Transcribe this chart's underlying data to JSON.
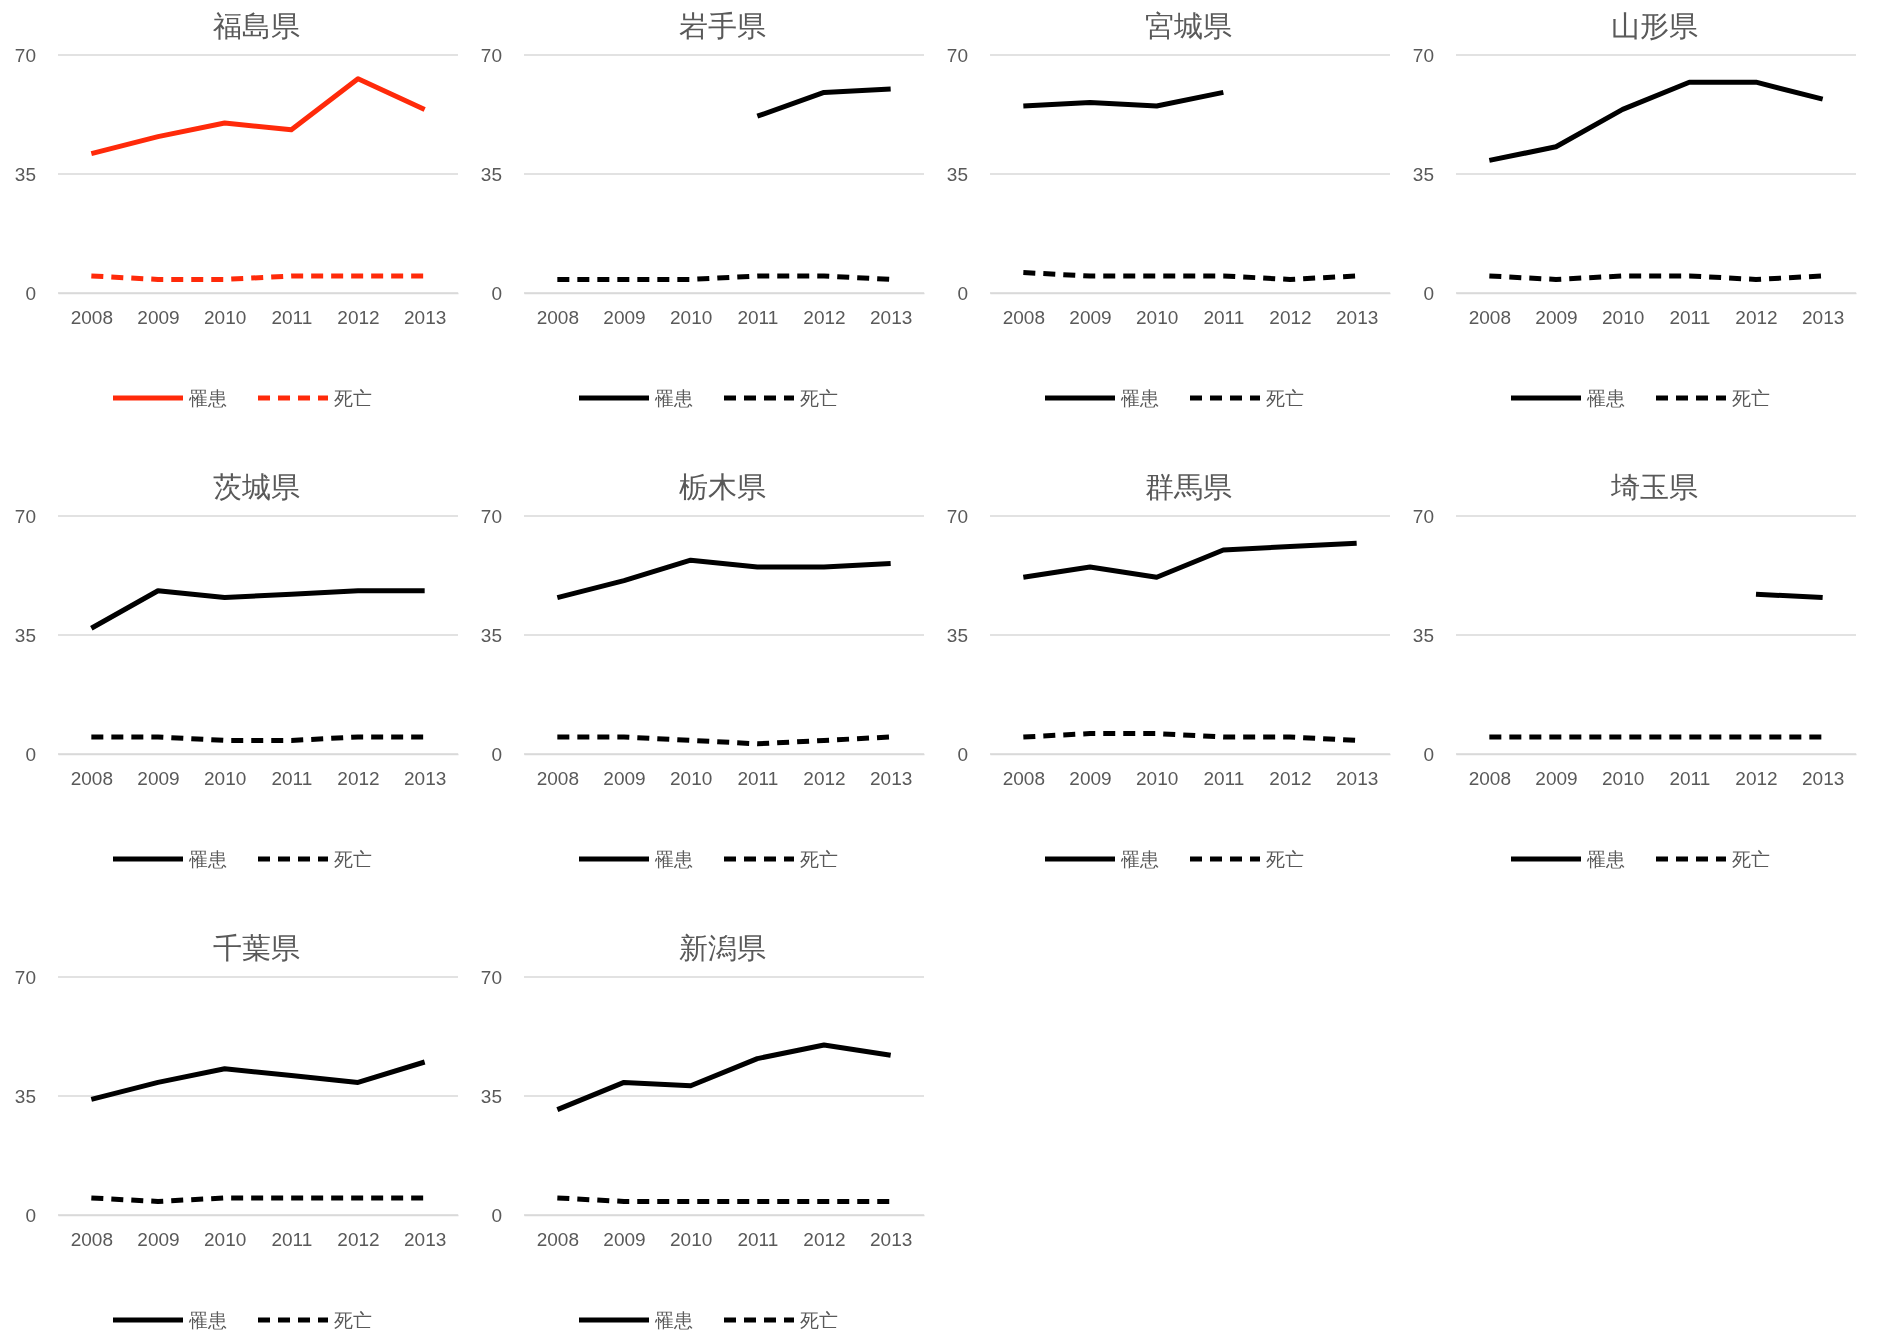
{
  "chart_data": [
    {
      "type": "line",
      "title": "福島県",
      "categories": [
        "2008",
        "2009",
        "2010",
        "2011",
        "2012",
        "2013"
      ],
      "ylim": [
        0,
        70
      ],
      "yticks": [
        0,
        35,
        70
      ],
      "grid": "y",
      "legend": "bottom",
      "series": [
        {
          "name": "罹患",
          "color": "#ff2a0a",
          "line_style": "solid",
          "values": [
            41,
            46,
            50,
            48,
            63,
            54
          ]
        },
        {
          "name": "死亡",
          "color": "#ff2a0a",
          "line_style": "dashed",
          "values": [
            5,
            4,
            4,
            5,
            5,
            5
          ]
        }
      ]
    },
    {
      "type": "line",
      "title": "岩手県",
      "categories": [
        "2008",
        "2009",
        "2010",
        "2011",
        "2012",
        "2013"
      ],
      "ylim": [
        0,
        70
      ],
      "yticks": [
        0,
        35,
        70
      ],
      "grid": "y",
      "legend": "bottom",
      "series": [
        {
          "name": "罹患",
          "color": "#000000",
          "line_style": "solid",
          "values": [
            null,
            null,
            null,
            52,
            59,
            60
          ]
        },
        {
          "name": "死亡",
          "color": "#000000",
          "line_style": "dashed",
          "values": [
            4,
            4,
            4,
            5,
            5,
            4
          ]
        }
      ]
    },
    {
      "type": "line",
      "title": "宮城県",
      "categories": [
        "2008",
        "2009",
        "2010",
        "2011",
        "2012",
        "2013"
      ],
      "ylim": [
        0,
        70
      ],
      "yticks": [
        0,
        35,
        70
      ],
      "grid": "y",
      "legend": "bottom",
      "series": [
        {
          "name": "罹患",
          "color": "#000000",
          "line_style": "solid",
          "values": [
            55,
            56,
            55,
            59,
            null,
            null
          ]
        },
        {
          "name": "死亡",
          "color": "#000000",
          "line_style": "dashed",
          "values": [
            6,
            5,
            5,
            5,
            4,
            5
          ]
        }
      ]
    },
    {
      "type": "line",
      "title": "山形県",
      "categories": [
        "2008",
        "2009",
        "2010",
        "2011",
        "2012",
        "2013"
      ],
      "ylim": [
        0,
        70
      ],
      "yticks": [
        0,
        35,
        70
      ],
      "grid": "y",
      "legend": "bottom",
      "series": [
        {
          "name": "罹患",
          "color": "#000000",
          "line_style": "solid",
          "values": [
            39,
            43,
            54,
            62,
            62,
            57
          ]
        },
        {
          "name": "死亡",
          "color": "#000000",
          "line_style": "dashed",
          "values": [
            5,
            4,
            5,
            5,
            4,
            5
          ]
        }
      ]
    },
    {
      "type": "line",
      "title": "茨城県",
      "categories": [
        "2008",
        "2009",
        "2010",
        "2011",
        "2012",
        "2013"
      ],
      "ylim": [
        0,
        70
      ],
      "yticks": [
        0,
        35,
        70
      ],
      "grid": "y",
      "legend": "bottom",
      "series": [
        {
          "name": "罹患",
          "color": "#000000",
          "line_style": "solid",
          "values": [
            37,
            48,
            46,
            47,
            48,
            48
          ]
        },
        {
          "name": "死亡",
          "color": "#000000",
          "line_style": "dashed",
          "values": [
            5,
            5,
            4,
            4,
            5,
            5
          ]
        }
      ]
    },
    {
      "type": "line",
      "title": "栃木県",
      "categories": [
        "2008",
        "2009",
        "2010",
        "2011",
        "2012",
        "2013"
      ],
      "ylim": [
        0,
        70
      ],
      "yticks": [
        0,
        35,
        70
      ],
      "grid": "y",
      "legend": "bottom",
      "series": [
        {
          "name": "罹患",
          "color": "#000000",
          "line_style": "solid",
          "values": [
            46,
            51,
            57,
            55,
            55,
            56
          ]
        },
        {
          "name": "死亡",
          "color": "#000000",
          "line_style": "dashed",
          "values": [
            5,
            5,
            4,
            3,
            4,
            5
          ]
        }
      ]
    },
    {
      "type": "line",
      "title": "群馬県",
      "categories": [
        "2008",
        "2009",
        "2010",
        "2011",
        "2012",
        "2013"
      ],
      "ylim": [
        0,
        70
      ],
      "yticks": [
        0,
        35,
        70
      ],
      "grid": "y",
      "legend": "bottom",
      "series": [
        {
          "name": "罹患",
          "color": "#000000",
          "line_style": "solid",
          "values": [
            52,
            55,
            52,
            60,
            61,
            62
          ]
        },
        {
          "name": "死亡",
          "color": "#000000",
          "line_style": "dashed",
          "values": [
            5,
            6,
            6,
            5,
            5,
            4
          ]
        }
      ]
    },
    {
      "type": "line",
      "title": "埼玉県",
      "categories": [
        "2008",
        "2009",
        "2010",
        "2011",
        "2012",
        "2013"
      ],
      "ylim": [
        0,
        70
      ],
      "yticks": [
        0,
        35,
        70
      ],
      "grid": "y",
      "legend": "bottom",
      "series": [
        {
          "name": "罹患",
          "color": "#000000",
          "line_style": "solid",
          "values": [
            null,
            null,
            null,
            null,
            47,
            46
          ]
        },
        {
          "name": "死亡",
          "color": "#000000",
          "line_style": "dashed",
          "values": [
            5,
            5,
            5,
            5,
            5,
            5
          ]
        }
      ]
    },
    {
      "type": "line",
      "title": "千葉県",
      "categories": [
        "2008",
        "2009",
        "2010",
        "2011",
        "2012",
        "2013"
      ],
      "ylim": [
        0,
        70
      ],
      "yticks": [
        0,
        35,
        70
      ],
      "grid": "y",
      "legend": "bottom",
      "series": [
        {
          "name": "罹患",
          "color": "#000000",
          "line_style": "solid",
          "values": [
            34,
            39,
            43,
            41,
            39,
            45
          ]
        },
        {
          "name": "死亡",
          "color": "#000000",
          "line_style": "dashed",
          "values": [
            5,
            4,
            5,
            5,
            5,
            5
          ]
        }
      ]
    },
    {
      "type": "line",
      "title": "新潟県",
      "categories": [
        "2008",
        "2009",
        "2010",
        "2011",
        "2012",
        "2013"
      ],
      "ylim": [
        0,
        70
      ],
      "yticks": [
        0,
        35,
        70
      ],
      "grid": "y",
      "legend": "bottom",
      "series": [
        {
          "name": "罹患",
          "color": "#000000",
          "line_style": "solid",
          "values": [
            31,
            39,
            38,
            46,
            50,
            47
          ]
        },
        {
          "name": "死亡",
          "color": "#000000",
          "line_style": "dashed",
          "values": [
            5,
            4,
            4,
            4,
            4,
            4
          ]
        }
      ]
    }
  ]
}
